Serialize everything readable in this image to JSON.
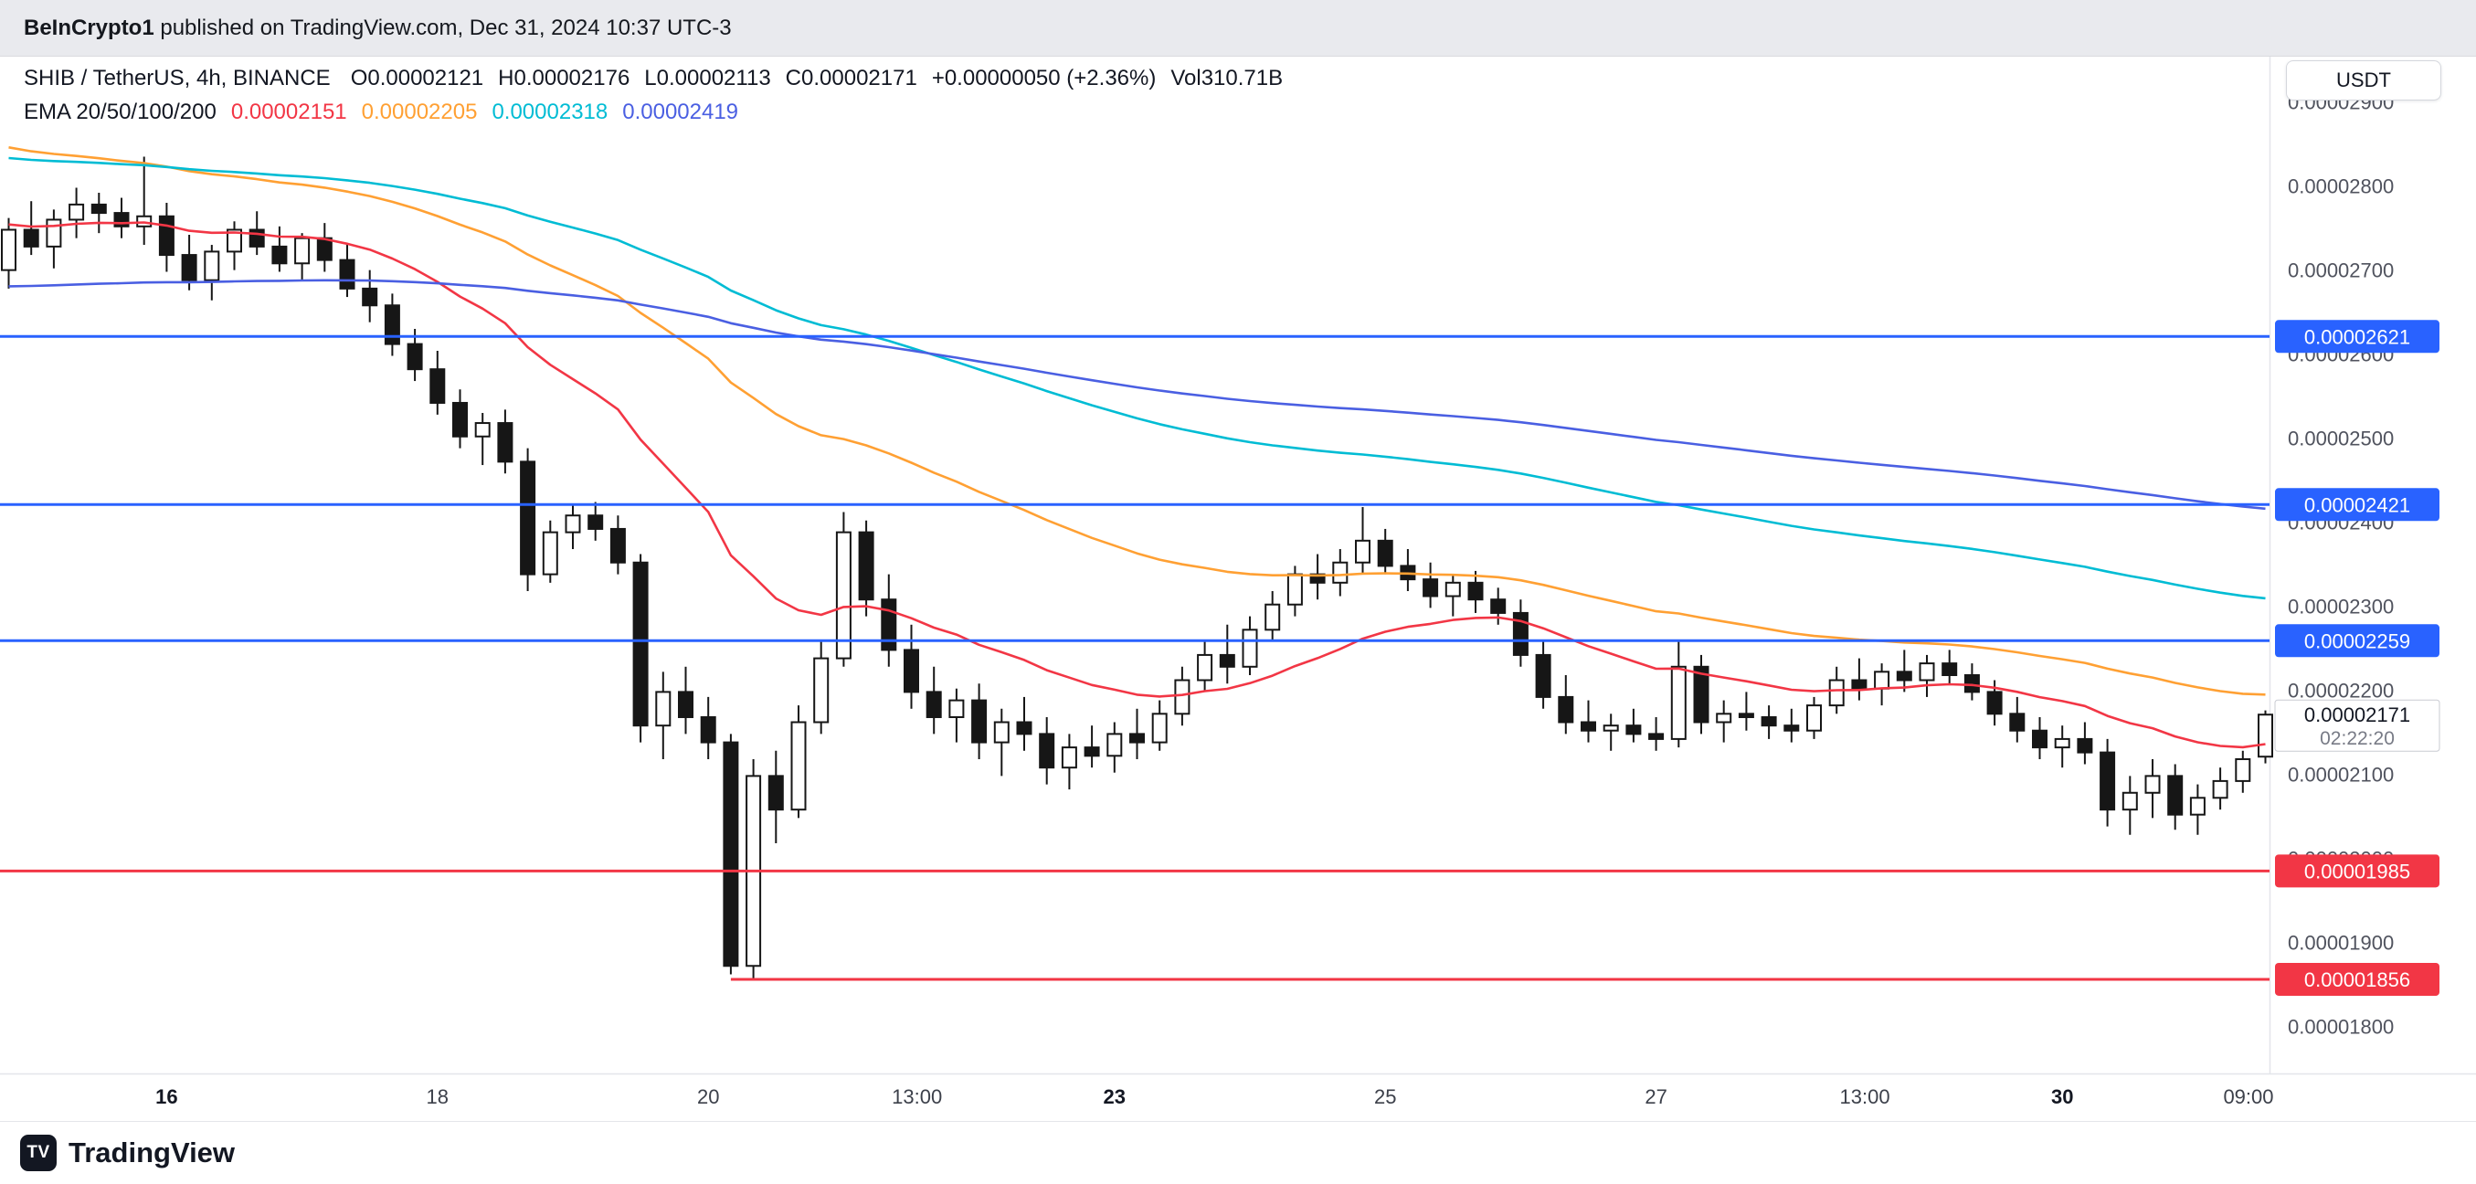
{
  "attribution": {
    "author": "BeInCrypto1",
    "text": " published on TradingView.com, Dec 31, 2024 10:37 UTC-3"
  },
  "header": {
    "symbol": "SHIB / TetherUS, 4h, BINANCE",
    "tokens": [
      "O0.00002121",
      "H0.00002176",
      "L0.00002113",
      "C0.00002171",
      "+0.00000050 (+2.36%)",
      "Vol310.71B"
    ]
  },
  "ema_legend": {
    "label": "EMA 20/50/100/200"
  },
  "axis": {
    "currency": "USDT"
  },
  "footer": {
    "brand": "TradingView",
    "icon_text": "TV"
  },
  "chart_data": {
    "type": "candlestick",
    "title": "SHIB / TetherUS, 4h, BINANCE",
    "note_price_unit": "prices stored as integer multiples of 1e-8 USDT",
    "y_axis": {
      "min": 1744,
      "max": 2954,
      "ticks": [
        {
          "price": 2900,
          "label": "0.00002900"
        },
        {
          "price": 2800,
          "label": "0.00002800"
        },
        {
          "price": 2700,
          "label": "0.00002700"
        },
        {
          "price": 2600,
          "label": "0.00002600"
        },
        {
          "price": 2500,
          "label": "0.00002500"
        },
        {
          "price": 2400,
          "label": "0.00002400"
        },
        {
          "price": 2300,
          "label": "0.00002300"
        },
        {
          "price": 2200,
          "label": "0.00002200"
        },
        {
          "price": 2100,
          "label": "0.00002100"
        },
        {
          "price": 2000,
          "label": "0.00002000"
        },
        {
          "price": 1900,
          "label": "0.00001900"
        },
        {
          "price": 1800,
          "label": "0.00001800"
        }
      ]
    },
    "x_axis": {
      "labels": [
        {
          "text": "16",
          "index": 7,
          "bold": true
        },
        {
          "text": "18",
          "index": 19,
          "bold": false
        },
        {
          "text": "20",
          "index": 31,
          "bold": false
        },
        {
          "text": "13:00",
          "index": 40.25,
          "bold": false
        },
        {
          "text": "23",
          "index": 49,
          "bold": true
        },
        {
          "text": "25",
          "index": 61,
          "bold": false
        },
        {
          "text": "27",
          "index": 73,
          "bold": false
        },
        {
          "text": "13:00",
          "index": 82.25,
          "bold": false
        },
        {
          "text": "30",
          "index": 91,
          "bold": true
        },
        {
          "text": "09:00",
          "index": 99.25,
          "bold": false
        }
      ]
    },
    "levels": [
      {
        "price": 2621,
        "label": "0.00002621",
        "color": "#2962ff",
        "from_index": null
      },
      {
        "price": 2421,
        "label": "0.00002421",
        "color": "#2962ff",
        "from_index": null
      },
      {
        "price": 2259,
        "label": "0.00002259",
        "color": "#2962ff",
        "from_index": null
      },
      {
        "price": 1985,
        "label": "0.00001985",
        "color": "#f23645",
        "from_index": null
      },
      {
        "price": 1856,
        "label": "0.00001856",
        "color": "#f23645",
        "from_index": 32
      }
    ],
    "emas": [
      {
        "period": 20,
        "color": "#f23645",
        "seed": 2755,
        "value_label": "0.00002151"
      },
      {
        "period": 50,
        "color": "#ffa033",
        "seed": 2850,
        "value_label": "0.00002205"
      },
      {
        "period": 100,
        "color": "#00bcd4",
        "seed": 2835,
        "value_label": "0.00002318"
      },
      {
        "period": 200,
        "color": "#4a5fe2",
        "seed": 2680,
        "value_label": "0.00002419"
      }
    ],
    "last": {
      "price": 2171,
      "label": "0.00002171",
      "countdown": "02:22:20"
    },
    "style": {
      "up_fill": "#ffffff",
      "down_fill": "#161616",
      "wick": "#161616",
      "border": "#161616"
    },
    "candles": [
      [
        2700,
        2762,
        2678,
        2748
      ],
      [
        2748,
        2782,
        2718,
        2728
      ],
      [
        2728,
        2772,
        2702,
        2760
      ],
      [
        2760,
        2798,
        2738,
        2778
      ],
      [
        2778,
        2792,
        2744,
        2768
      ],
      [
        2768,
        2786,
        2738,
        2752
      ],
      [
        2752,
        2835,
        2730,
        2764
      ],
      [
        2764,
        2780,
        2698,
        2718
      ],
      [
        2718,
        2742,
        2676,
        2688
      ],
      [
        2688,
        2730,
        2664,
        2722
      ],
      [
        2722,
        2758,
        2700,
        2748
      ],
      [
        2748,
        2770,
        2718,
        2728
      ],
      [
        2728,
        2752,
        2698,
        2708
      ],
      [
        2708,
        2744,
        2688,
        2738
      ],
      [
        2738,
        2756,
        2698,
        2712
      ],
      [
        2712,
        2730,
        2668,
        2678
      ],
      [
        2678,
        2700,
        2638,
        2658
      ],
      [
        2658,
        2672,
        2598,
        2612
      ],
      [
        2612,
        2630,
        2568,
        2582
      ],
      [
        2582,
        2604,
        2528,
        2542
      ],
      [
        2542,
        2558,
        2488,
        2502
      ],
      [
        2502,
        2530,
        2468,
        2518
      ],
      [
        2518,
        2534,
        2458,
        2472
      ],
      [
        2472,
        2488,
        2318,
        2338
      ],
      [
        2338,
        2402,
        2328,
        2388
      ],
      [
        2388,
        2422,
        2368,
        2408
      ],
      [
        2408,
        2424,
        2378,
        2392
      ],
      [
        2392,
        2408,
        2338,
        2352
      ],
      [
        2352,
        2362,
        2138,
        2158
      ],
      [
        2158,
        2222,
        2118,
        2198
      ],
      [
        2198,
        2228,
        2148,
        2168
      ],
      [
        2168,
        2192,
        2118,
        2138
      ],
      [
        2138,
        2148,
        1862,
        1872
      ],
      [
        1872,
        2118,
        1856,
        2098
      ],
      [
        2098,
        2128,
        2018,
        2058
      ],
      [
        2058,
        2182,
        2048,
        2162
      ],
      [
        2162,
        2258,
        2148,
        2238
      ],
      [
        2238,
        2412,
        2228,
        2388
      ],
      [
        2388,
        2402,
        2288,
        2308
      ],
      [
        2308,
        2338,
        2228,
        2248
      ],
      [
        2248,
        2278,
        2178,
        2198
      ],
      [
        2198,
        2228,
        2148,
        2168
      ],
      [
        2168,
        2202,
        2138,
        2188
      ],
      [
        2188,
        2208,
        2118,
        2138
      ],
      [
        2138,
        2178,
        2098,
        2162
      ],
      [
        2162,
        2192,
        2128,
        2148
      ],
      [
        2148,
        2168,
        2088,
        2108
      ],
      [
        2108,
        2148,
        2082,
        2132
      ],
      [
        2132,
        2158,
        2108,
        2122
      ],
      [
        2122,
        2162,
        2102,
        2148
      ],
      [
        2148,
        2178,
        2118,
        2138
      ],
      [
        2138,
        2188,
        2128,
        2172
      ],
      [
        2172,
        2228,
        2158,
        2212
      ],
      [
        2212,
        2258,
        2198,
        2242
      ],
      [
        2242,
        2278,
        2208,
        2228
      ],
      [
        2228,
        2288,
        2218,
        2272
      ],
      [
        2272,
        2318,
        2258,
        2302
      ],
      [
        2302,
        2348,
        2288,
        2338
      ],
      [
        2338,
        2362,
        2308,
        2328
      ],
      [
        2328,
        2368,
        2312,
        2352
      ],
      [
        2352,
        2418,
        2338,
        2378
      ],
      [
        2378,
        2392,
        2338,
        2348
      ],
      [
        2348,
        2368,
        2318,
        2332
      ],
      [
        2332,
        2352,
        2298,
        2312
      ],
      [
        2312,
        2338,
        2288,
        2328
      ],
      [
        2328,
        2342,
        2292,
        2308
      ],
      [
        2308,
        2322,
        2278,
        2292
      ],
      [
        2292,
        2308,
        2228,
        2242
      ],
      [
        2242,
        2258,
        2178,
        2192
      ],
      [
        2192,
        2218,
        2148,
        2162
      ],
      [
        2162,
        2188,
        2138,
        2152
      ],
      [
        2152,
        2172,
        2128,
        2158
      ],
      [
        2158,
        2178,
        2138,
        2148
      ],
      [
        2148,
        2168,
        2128,
        2142
      ],
      [
        2142,
        2258,
        2132,
        2228
      ],
      [
        2228,
        2242,
        2148,
        2162
      ],
      [
        2162,
        2188,
        2138,
        2172
      ],
      [
        2172,
        2198,
        2152,
        2168
      ],
      [
        2168,
        2182,
        2142,
        2158
      ],
      [
        2158,
        2178,
        2138,
        2152
      ],
      [
        2152,
        2192,
        2142,
        2182
      ],
      [
        2182,
        2228,
        2172,
        2212
      ],
      [
        2212,
        2238,
        2188,
        2202
      ],
      [
        2202,
        2232,
        2182,
        2222
      ],
      [
        2222,
        2248,
        2198,
        2212
      ],
      [
        2212,
        2242,
        2192,
        2232
      ],
      [
        2232,
        2248,
        2208,
        2218
      ],
      [
        2218,
        2232,
        2188,
        2198
      ],
      [
        2198,
        2212,
        2158,
        2172
      ],
      [
        2172,
        2192,
        2138,
        2152
      ],
      [
        2152,
        2168,
        2118,
        2132
      ],
      [
        2132,
        2158,
        2108,
        2142
      ],
      [
        2142,
        2162,
        2112,
        2126
      ],
      [
        2126,
        2142,
        2038,
        2058
      ],
      [
        2058,
        2098,
        2028,
        2078
      ],
      [
        2078,
        2118,
        2048,
        2098
      ],
      [
        2098,
        2112,
        2034,
        2052
      ],
      [
        2052,
        2088,
        2028,
        2072
      ],
      [
        2072,
        2108,
        2058,
        2092
      ],
      [
        2092,
        2128,
        2078,
        2118
      ],
      [
        2121,
        2176,
        2113,
        2171
      ]
    ]
  }
}
